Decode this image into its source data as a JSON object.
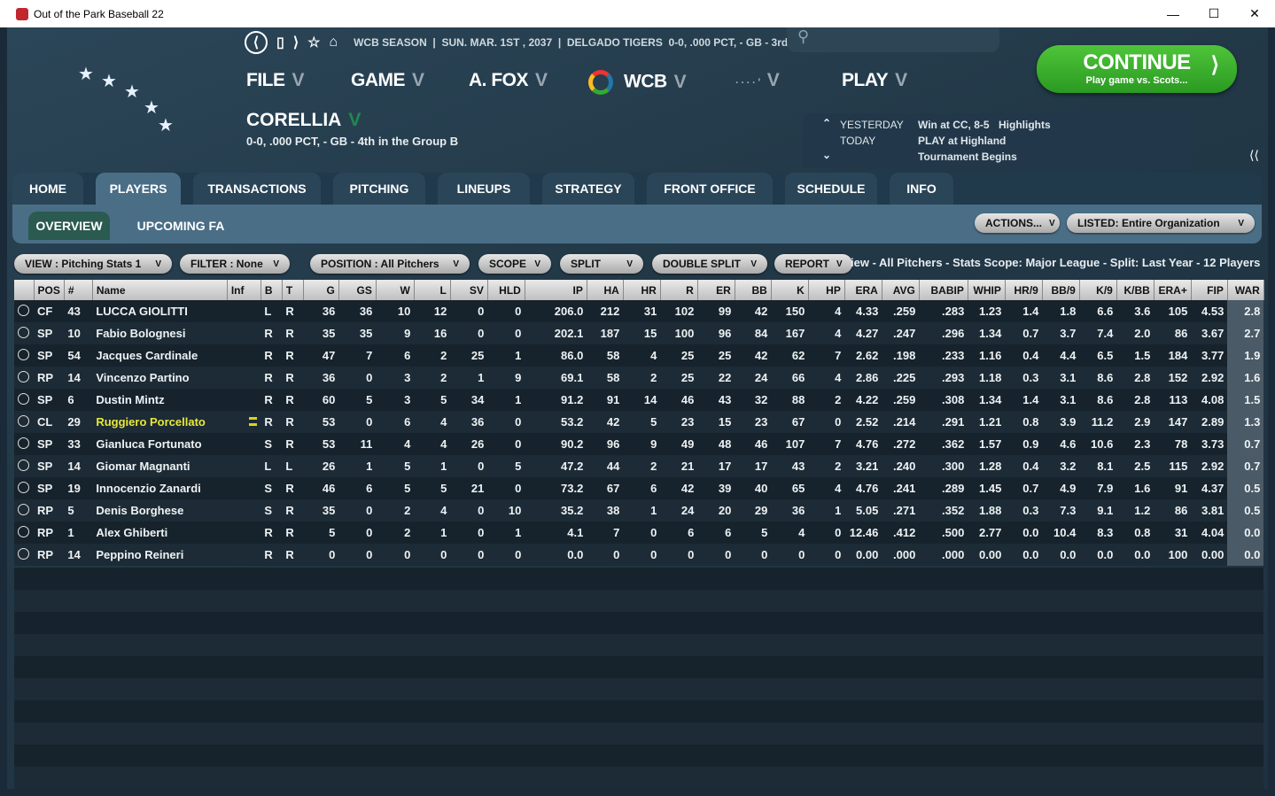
{
  "window": {
    "title": "Out of the Park Baseball 22",
    "logo_text": "22"
  },
  "topbar": {
    "info": "WCB SEASON  |  SUN. MAR. 1ST , 2037  |  DELGADO TIGERS  0-0, .000 PCT, - GB - 3rd"
  },
  "menu": [
    {
      "label": "FILE"
    },
    {
      "label": "GAME"
    },
    {
      "label": "A. FOX"
    },
    {
      "label": "WCB"
    },
    {
      "label": ""
    },
    {
      "label": "PLAY"
    }
  ],
  "team": {
    "name": "CORELLIA",
    "record": "0-0, .000 PCT, - GB - 4th in the Group B"
  },
  "continue": {
    "label": "CONTINUE",
    "sub": "Play game vs. Scots..."
  },
  "news": {
    "yesterday_label": "YESTERDAY",
    "yesterday": "Win at CC, 8-5",
    "highlights": "Highlights",
    "today_label": "TODAY",
    "today": "PLAY at Highland",
    "today2": "Tournament Begins"
  },
  "tabs": [
    "HOME",
    "PLAYERS",
    "TRANSACTIONS",
    "PITCHING",
    "LINEUPS",
    "STRATEGY",
    "FRONT OFFICE",
    "SCHEDULE",
    "INFO"
  ],
  "active_tab": "PLAYERS",
  "subtabs": [
    "OVERVIEW",
    "UPCOMING FA"
  ],
  "actions": {
    "actions": "ACTIONS...",
    "listed": "LISTED: Entire Organization"
  },
  "filters": {
    "view": "VIEW : Pitching Stats 1",
    "filter": "FILTER : None",
    "position": "POSITION : All Pitchers",
    "scope": "SCOPE",
    "split": "SPLIT",
    "double_split": "DOUBLE SPLIT",
    "report": "REPORT"
  },
  "summary": "iew - All Pitchers - Stats Scope: Major League - Split: Last Year - 12 Players",
  "columns": [
    "",
    "POS",
    "#",
    "Name",
    "Inf",
    "B",
    "T",
    "G",
    "GS",
    "W",
    "L",
    "SV",
    "HLD",
    "IP",
    "HA",
    "HR",
    "R",
    "ER",
    "BB",
    "K",
    "HP",
    "ERA",
    "AVG",
    "BABIP",
    "WHIP",
    "HR/9",
    "BB/9",
    "K/9",
    "K/BB",
    "ERA+",
    "FIP",
    "WAR"
  ],
  "rows": [
    [
      "CF",
      "43",
      "LUCCA GIOLITTI",
      "",
      "L",
      "R",
      "36",
      "36",
      "10",
      "12",
      "0",
      "0",
      "206.0",
      "212",
      "31",
      "102",
      "99",
      "42",
      "150",
      "4",
      "4.33",
      ".259",
      ".283",
      "1.23",
      "1.4",
      "1.8",
      "6.6",
      "3.6",
      "105",
      "4.53",
      "2.8"
    ],
    [
      "SP",
      "10",
      "Fabio Bolognesi",
      "",
      "R",
      "R",
      "35",
      "35",
      "9",
      "16",
      "0",
      "0",
      "202.1",
      "187",
      "15",
      "100",
      "96",
      "84",
      "167",
      "4",
      "4.27",
      ".247",
      ".296",
      "1.34",
      "0.7",
      "3.7",
      "7.4",
      "2.0",
      "86",
      "3.67",
      "2.7"
    ],
    [
      "SP",
      "54",
      "Jacques Cardinale",
      "",
      "R",
      "R",
      "47",
      "7",
      "6",
      "2",
      "25",
      "1",
      "86.0",
      "58",
      "4",
      "25",
      "25",
      "42",
      "62",
      "7",
      "2.62",
      ".198",
      ".233",
      "1.16",
      "0.4",
      "4.4",
      "6.5",
      "1.5",
      "184",
      "3.77",
      "1.9"
    ],
    [
      "RP",
      "14",
      "Vincenzo Partino",
      "",
      "R",
      "R",
      "36",
      "0",
      "3",
      "2",
      "1",
      "9",
      "69.1",
      "58",
      "2",
      "25",
      "22",
      "24",
      "66",
      "4",
      "2.86",
      ".225",
      ".293",
      "1.18",
      "0.3",
      "3.1",
      "8.6",
      "2.8",
      "152",
      "2.92",
      "1.6"
    ],
    [
      "SP",
      "6",
      "Dustin Mintz",
      "",
      "R",
      "R",
      "60",
      "5",
      "3",
      "5",
      "34",
      "1",
      "91.2",
      "91",
      "14",
      "46",
      "43",
      "32",
      "88",
      "2",
      "4.22",
      ".259",
      ".308",
      "1.34",
      "1.4",
      "3.1",
      "8.6",
      "2.8",
      "113",
      "4.08",
      "1.5"
    ],
    [
      "CL",
      "29",
      "Ruggiero Porcellato",
      "injury",
      "R",
      "R",
      "53",
      "0",
      "6",
      "4",
      "36",
      "0",
      "53.2",
      "42",
      "5",
      "23",
      "15",
      "23",
      "67",
      "0",
      "2.52",
      ".214",
      ".291",
      "1.21",
      "0.8",
      "3.9",
      "11.2",
      "2.9",
      "147",
      "2.89",
      "1.3"
    ],
    [
      "SP",
      "33",
      "Gianluca Fortunato",
      "",
      "S",
      "R",
      "53",
      "11",
      "4",
      "4",
      "26",
      "0",
      "90.2",
      "96",
      "9",
      "49",
      "48",
      "46",
      "107",
      "7",
      "4.76",
      ".272",
      ".362",
      "1.57",
      "0.9",
      "4.6",
      "10.6",
      "2.3",
      "78",
      "3.73",
      "0.7"
    ],
    [
      "SP",
      "14",
      "Giomar Magnanti",
      "",
      "L",
      "L",
      "26",
      "1",
      "5",
      "1",
      "0",
      "5",
      "47.2",
      "44",
      "2",
      "21",
      "17",
      "17",
      "43",
      "2",
      "3.21",
      ".240",
      ".300",
      "1.28",
      "0.4",
      "3.2",
      "8.1",
      "2.5",
      "115",
      "2.92",
      "0.7"
    ],
    [
      "SP",
      "19",
      "Innocenzio Zanardi",
      "",
      "S",
      "R",
      "46",
      "6",
      "5",
      "5",
      "21",
      "0",
      "73.2",
      "67",
      "6",
      "42",
      "39",
      "40",
      "65",
      "4",
      "4.76",
      ".241",
      ".289",
      "1.45",
      "0.7",
      "4.9",
      "7.9",
      "1.6",
      "91",
      "4.37",
      "0.5"
    ],
    [
      "RP",
      "5",
      "Denis Borghese",
      "",
      "S",
      "R",
      "35",
      "0",
      "2",
      "4",
      "0",
      "10",
      "35.2",
      "38",
      "1",
      "24",
      "20",
      "29",
      "36",
      "1",
      "5.05",
      ".271",
      ".352",
      "1.88",
      "0.3",
      "7.3",
      "9.1",
      "1.2",
      "86",
      "3.81",
      "0.5"
    ],
    [
      "RP",
      "1",
      "Alex Ghiberti",
      "",
      "R",
      "R",
      "5",
      "0",
      "2",
      "1",
      "0",
      "1",
      "4.1",
      "7",
      "0",
      "6",
      "6",
      "5",
      "4",
      "0",
      "12.46",
      ".412",
      ".500",
      "2.77",
      "0.0",
      "10.4",
      "8.3",
      "0.8",
      "31",
      "4.04",
      "0.0"
    ],
    [
      "RP",
      "14",
      "Peppino Reineri",
      "",
      "R",
      "R",
      "0",
      "0",
      "0",
      "0",
      "0",
      "0",
      "0.0",
      "0",
      "0",
      "0",
      "0",
      "0",
      "0",
      "0",
      "0.00",
      ".000",
      ".000",
      "0.00",
      "0.0",
      "0.0",
      "0.0",
      "0.0",
      "100",
      "0.00",
      "0.0"
    ]
  ],
  "highlighted_row": 5,
  "colors": {
    "continue": "#3db22e",
    "highlight_name": "#e8e83a",
    "tab_active": "#4a6e86"
  }
}
